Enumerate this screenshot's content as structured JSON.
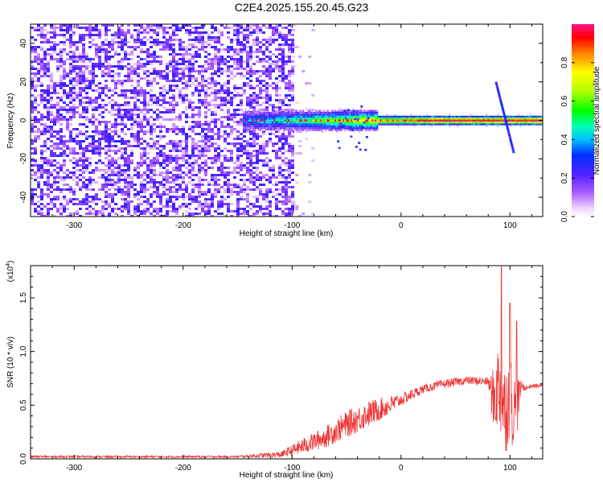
{
  "title": "C2E4.2025.155.20.45.G23",
  "chart_data": [
    {
      "type": "heatmap",
      "xlabel": "Height of straight line (km)",
      "ylabel": "Frequency (Hz)",
      "xlim": [
        -340,
        130
      ],
      "ylim": [
        -50,
        50
      ],
      "xticks": [
        -300,
        -200,
        -100,
        0,
        100
      ],
      "yticks": [
        -40,
        -20,
        0,
        20,
        40
      ],
      "colorbar": {
        "label": "Normalized spectral amplitude",
        "range": [
          0.0,
          1.0
        ],
        "ticks": [
          "0.0",
          "0.2",
          "0.4",
          "0.6",
          "0.8"
        ],
        "tick_values": [
          0.0,
          0.2,
          0.4,
          0.6,
          0.8
        ]
      },
      "features": {
        "noise_region_x": [
          -340,
          -100
        ],
        "noise_amplitude": 0.12,
        "carrier_line": {
          "x": [
            -145,
            130
          ],
          "frequency_hz": 0,
          "amplitude_range": [
            0.3,
            1.0
          ]
        },
        "spread_near_x": [
          -60,
          -30
        ],
        "spread_frequency_hz": [
          -15,
          8
        ],
        "trails": [
          {
            "x": [
              87,
              103
            ],
            "frequency_hz": [
              20,
              -16
            ]
          }
        ]
      }
    },
    {
      "type": "line",
      "xlabel": "Height of straight line (km)",
      "ylabel": "SNR (10 * v/v)",
      "yunit_label": "(x10",
      "yunit_exp": "4",
      "yunit_close": ")",
      "xlim": [
        -340,
        130
      ],
      "ylim": [
        0.0,
        1.8
      ],
      "xticks": [
        -300,
        -200,
        -100,
        0,
        100
      ],
      "yticks": [
        0.0,
        0.5,
        1.0,
        1.5
      ],
      "ytick_labels": [
        "0.0",
        "0.5",
        "1.0",
        "1.5"
      ],
      "series": [
        {
          "color": "#ee3333",
          "envelope_x": [
            -340,
            -150,
            -110,
            -90,
            -70,
            -50,
            -30,
            -10,
            0,
            20,
            40,
            60,
            80,
            85,
            90,
            95,
            100,
            105,
            110,
            115,
            120,
            130
          ],
          "envelope_y": [
            0.02,
            0.02,
            0.04,
            0.12,
            0.2,
            0.32,
            0.42,
            0.5,
            0.55,
            0.65,
            0.7,
            0.73,
            0.72,
            0.55,
            0.7,
            0.45,
            0.6,
            0.4,
            0.68,
            0.66,
            0.68,
            0.68
          ],
          "noise_y": [
            0.02,
            0.02,
            0.06,
            0.15,
            0.2,
            0.25,
            0.25,
            0.18,
            0.12,
            0.08,
            0.08,
            0.08,
            0.08,
            0.6,
            0.9,
            0.9,
            0.8,
            0.8,
            0.1,
            0.05,
            0.04,
            0.04
          ],
          "peaks": [
            {
              "x": 92,
              "y": 1.8
            },
            {
              "x": 100,
              "y": 1.45
            },
            {
              "x": 106,
              "y": 1.28
            }
          ]
        }
      ]
    }
  ]
}
